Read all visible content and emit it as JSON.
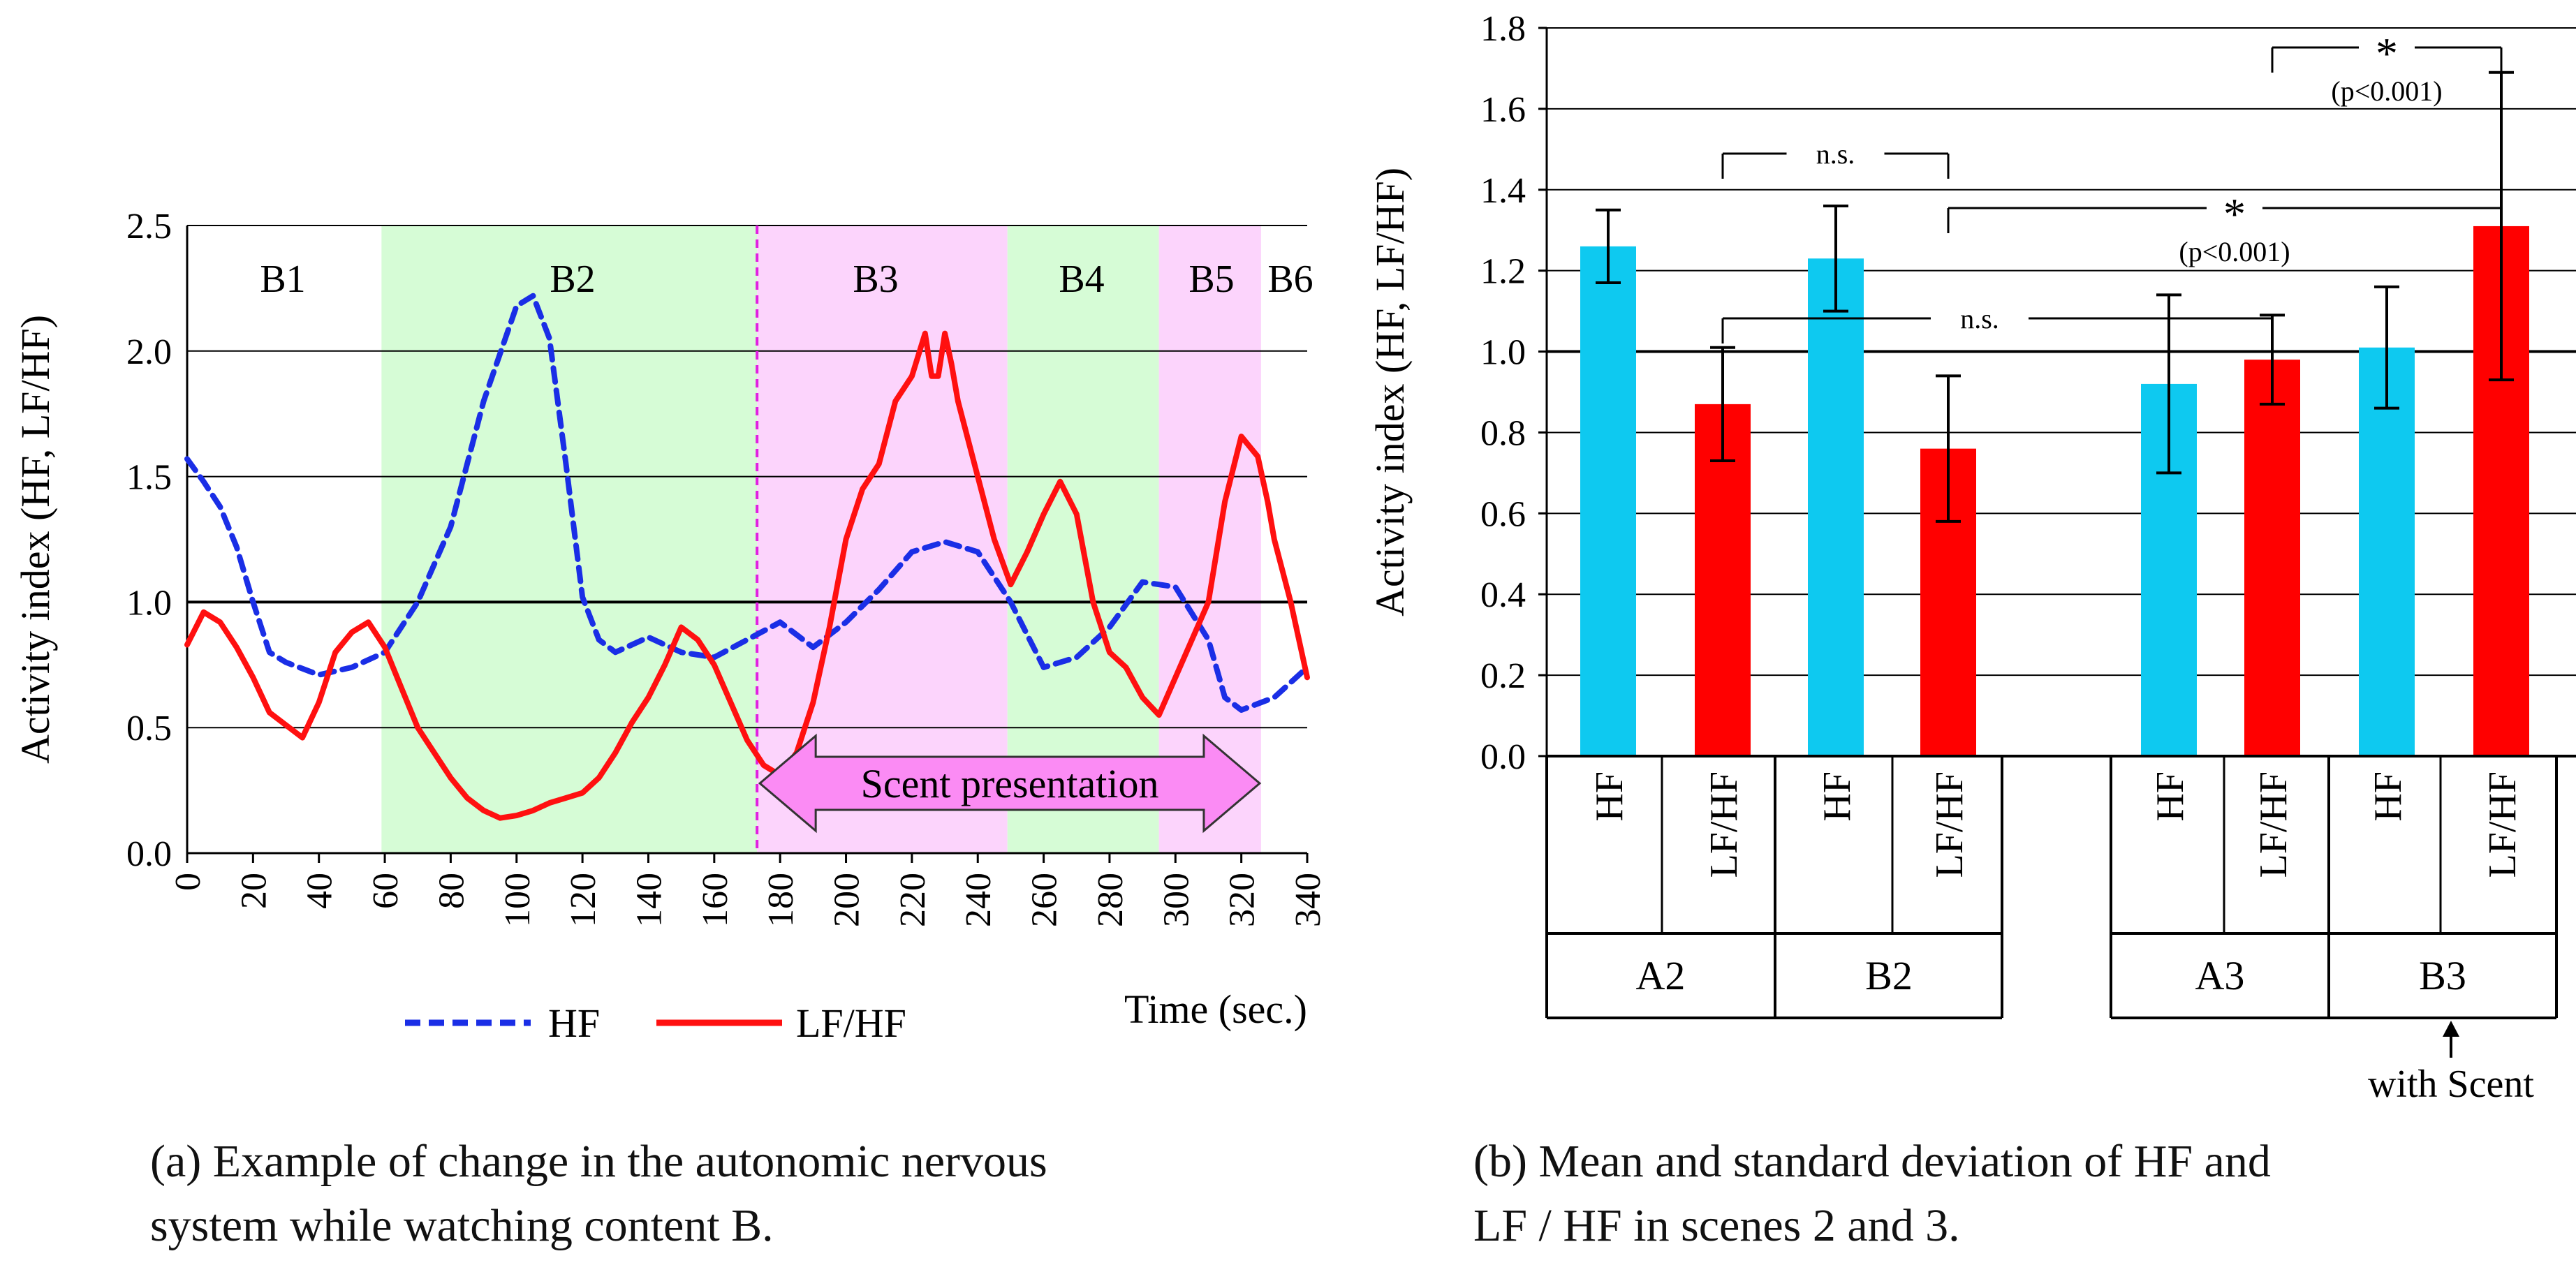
{
  "chart_data": [
    {
      "type": "line",
      "ylabel": "Activity index  (HF, LF/HF)",
      "xlabel": "Time (sec.)",
      "xlim": [
        0,
        340
      ],
      "ylim": [
        0,
        2.5
      ],
      "x_ticks": [
        "0",
        "20",
        "40",
        "60",
        "80",
        "100",
        "120",
        "140",
        "160",
        "180",
        "200",
        "220",
        "240",
        "260",
        "280",
        "300",
        "320",
        "340"
      ],
      "y_ticks": [
        "0.0",
        "0.5",
        "1.0",
        "1.5",
        "2.0",
        "2.5"
      ],
      "bands": [
        {
          "label": "B1",
          "start": 0,
          "end": 59,
          "color": "#ffffff"
        },
        {
          "label": "B2",
          "start": 59,
          "end": 173,
          "color": "#d6fcd6"
        },
        {
          "label": "B3",
          "start": 173,
          "end": 249,
          "color": "#fcd4fc"
        },
        {
          "label": "B4",
          "start": 249,
          "end": 295,
          "color": "#d6fcd6"
        },
        {
          "label": "B5",
          "start": 295,
          "end": 326,
          "color": "#fcd4fc"
        },
        {
          "label": "B6",
          "start": 326,
          "end": 340,
          "color": "#ffffff"
        }
      ],
      "scent_marker": 173,
      "scent_label": "Scent presentation",
      "scent_range": [
        173,
        326
      ],
      "legend": [
        {
          "name": "HF",
          "color": "#1a2ee6",
          "dash": true
        },
        {
          "name": "LF/HF",
          "color": "#ff1010",
          "dash": false
        }
      ],
      "series": [
        {
          "name": "HF",
          "color": "#1a2ee6",
          "x": [
            0,
            5,
            10,
            15,
            20,
            25,
            30,
            40,
            50,
            60,
            70,
            80,
            90,
            100,
            105,
            110,
            115,
            120,
            125,
            130,
            140,
            150,
            160,
            170,
            180,
            190,
            200,
            210,
            220,
            230,
            240,
            250,
            260,
            270,
            280,
            290,
            300,
            310,
            315,
            320,
            330,
            340
          ],
          "y": [
            1.57,
            1.48,
            1.38,
            1.22,
            1.0,
            0.8,
            0.76,
            0.71,
            0.74,
            0.8,
            1.0,
            1.3,
            1.8,
            2.18,
            2.22,
            2.05,
            1.55,
            1.02,
            0.85,
            0.8,
            0.86,
            0.8,
            0.78,
            0.85,
            0.92,
            0.82,
            0.92,
            1.05,
            1.2,
            1.24,
            1.2,
            1.0,
            0.74,
            0.78,
            0.9,
            1.08,
            1.06,
            0.85,
            0.62,
            0.57,
            0.62,
            0.74
          ]
        },
        {
          "name": "LF/HF",
          "color": "#ff1010",
          "x": [
            0,
            5,
            10,
            15,
            20,
            25,
            30,
            35,
            40,
            45,
            50,
            55,
            60,
            65,
            70,
            75,
            80,
            85,
            90,
            95,
            100,
            105,
            110,
            115,
            120,
            125,
            130,
            135,
            140,
            145,
            150,
            155,
            160,
            165,
            170,
            175,
            180,
            185,
            190,
            195,
            200,
            205,
            210,
            215,
            220,
            224,
            226,
            228,
            230,
            232,
            234,
            240,
            245,
            250,
            255,
            260,
            265,
            270,
            275,
            280,
            285,
            290,
            295,
            300,
            305,
            310,
            315,
            320,
            325,
            328,
            330,
            335,
            340
          ],
          "y": [
            0.83,
            0.96,
            0.92,
            0.82,
            0.7,
            0.56,
            0.51,
            0.46,
            0.6,
            0.8,
            0.88,
            0.92,
            0.82,
            0.66,
            0.5,
            0.4,
            0.3,
            0.22,
            0.17,
            0.14,
            0.15,
            0.17,
            0.2,
            0.22,
            0.24,
            0.3,
            0.4,
            0.52,
            0.62,
            0.75,
            0.9,
            0.85,
            0.75,
            0.6,
            0.45,
            0.35,
            0.31,
            0.4,
            0.6,
            0.9,
            1.25,
            1.45,
            1.55,
            1.8,
            1.9,
            2.07,
            1.9,
            1.9,
            2.07,
            1.95,
            1.8,
            1.5,
            1.25,
            1.07,
            1.2,
            1.35,
            1.48,
            1.35,
            1.0,
            0.8,
            0.74,
            0.62,
            0.55,
            0.7,
            0.85,
            1.0,
            1.4,
            1.66,
            1.58,
            1.4,
            1.25,
            1.0,
            0.7
          ]
        }
      ]
    },
    {
      "type": "bar",
      "ylabel": "Activity index (HF, LF/HF)",
      "ylim": [
        0,
        1.8
      ],
      "y_ticks": [
        "0.0",
        "0.2",
        "0.4",
        "0.6",
        "0.8",
        "1.0",
        "1.2",
        "1.4",
        "1.6",
        "1.8"
      ],
      "categories": [
        {
          "metric": "HF",
          "group": "A2",
          "value": 1.26,
          "sd": 0.09,
          "color": "#0ec9f0"
        },
        {
          "metric": "LF/HF",
          "group": "A2",
          "value": 0.87,
          "sd": 0.14,
          "color": "#ff0000"
        },
        {
          "metric": "HF",
          "group": "B2",
          "value": 1.23,
          "sd": 0.13,
          "color": "#0ec9f0"
        },
        {
          "metric": "LF/HF",
          "group": "B2",
          "value": 0.76,
          "sd": 0.18,
          "color": "#ff0000"
        },
        {
          "metric": "HF",
          "group": "A3",
          "value": 0.92,
          "sd": 0.22,
          "color": "#0ec9f0"
        },
        {
          "metric": "LF/HF",
          "group": "A3",
          "value": 0.98,
          "sd": 0.11,
          "color": "#ff0000"
        },
        {
          "metric": "HF",
          "group": "B3",
          "value": 1.01,
          "sd": 0.15,
          "color": "#0ec9f0"
        },
        {
          "metric": "LF/HF",
          "group": "B3",
          "value": 1.31,
          "sd": 0.38,
          "color": "#ff0000"
        }
      ],
      "groups": [
        "A2",
        "B2",
        "A3",
        "B3"
      ],
      "annotations": [
        {
          "from": 1,
          "to": 3,
          "label": "n.s.",
          "sub": ""
        },
        {
          "from": 3,
          "to": 7,
          "label": "*",
          "sub": "(p<0.001)"
        },
        {
          "from": 1,
          "to": 5,
          "label": "n.s.",
          "sub": ""
        },
        {
          "from": 5,
          "to": 7,
          "label": "*",
          "sub": "(p<0.001)"
        }
      ],
      "footnote": "with Scent"
    }
  ],
  "captions": {
    "a_line1": "(a) Example of change in the autonomic nervous",
    "a_line2": "system while watching content B.",
    "b_line1": "(b) Mean and standard deviation of HF and",
    "b_line2": "LF / HF in scenes 2 and 3."
  }
}
